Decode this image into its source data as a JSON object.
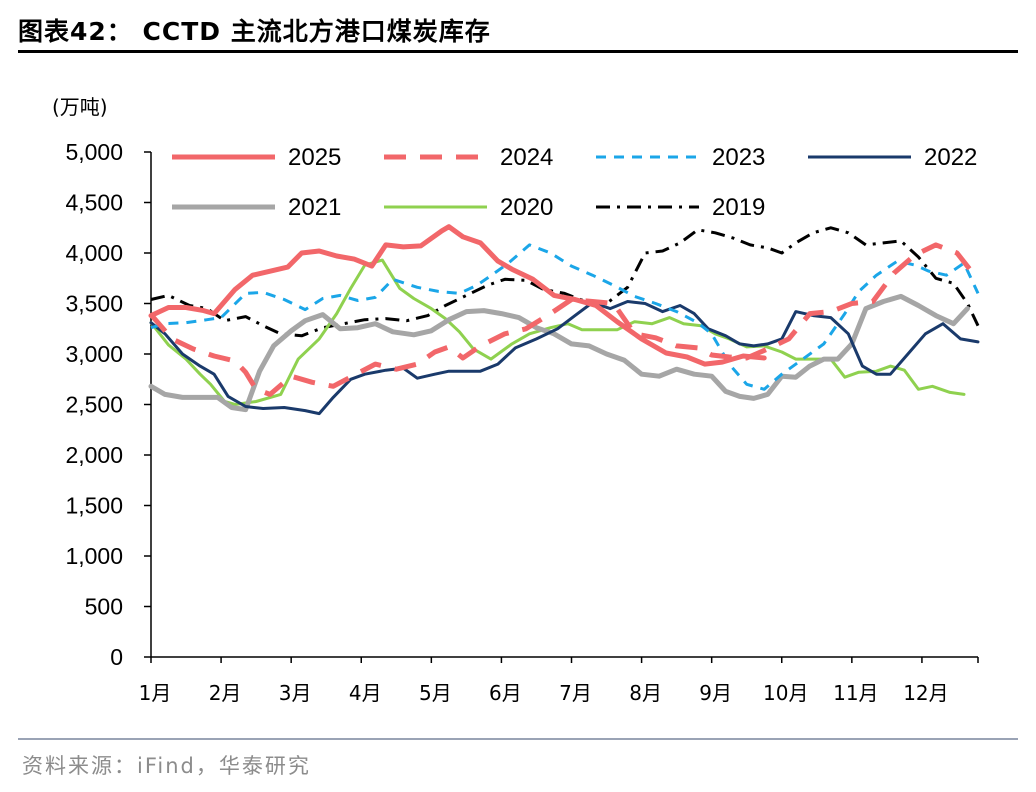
{
  "header": {
    "title": "图表42：  CCTD 主流北方港口煤炭库存",
    "source": "资料来源：iFind，华泰研究"
  },
  "chart_data": {
    "type": "line",
    "title": "CCTD 主流北方港口煤炭库存",
    "ylabel": "(万吨)",
    "xlabel": "",
    "ylim": [
      0,
      5000
    ],
    "yticks": [
      "5,000",
      "4,500",
      "4,000",
      "3,500",
      "3,000",
      "2,500",
      "2,000",
      "1,500",
      "1,000",
      "500",
      "0"
    ],
    "xticks": [
      "1月",
      "2月",
      "3月",
      "4月",
      "5月",
      "6月",
      "7月",
      "8月",
      "9月",
      "10月",
      "11月",
      "12月"
    ],
    "x_range_months": [
      1,
      12.8
    ],
    "legend_position": "top",
    "series": [
      {
        "name": "2025",
        "color": "#f2676a",
        "style": "solid",
        "width": 5,
        "x": [
          1,
          1.25,
          1.5,
          1.75,
          1.9,
          2.2,
          2.45,
          2.7,
          2.95,
          3.15,
          3.4,
          3.65,
          3.9,
          4.15,
          4.35,
          4.6,
          4.85,
          5.15,
          5.25,
          5.45,
          5.7,
          5.95,
          6.15,
          6.45,
          6.75,
          7.05,
          7.35,
          7.65,
          8.0,
          8.35,
          8.65,
          8.9,
          9.15,
          9.45,
          9.75
        ],
        "values": [
          3380,
          3460,
          3460,
          3430,
          3400,
          3640,
          3780,
          3820,
          3860,
          4000,
          4020,
          3970,
          3940,
          3870,
          4080,
          4060,
          4070,
          4220,
          4260,
          4160,
          4100,
          3920,
          3840,
          3740,
          3580,
          3540,
          3480,
          3320,
          3150,
          3010,
          2970,
          2900,
          2920,
          2980,
          2960
        ]
      },
      {
        "name": "2024",
        "color": "#f2676a",
        "style": "dashed",
        "width": 5,
        "x": [
          1,
          1.3,
          1.6,
          1.9,
          2.2,
          2.35,
          2.5,
          2.7,
          3.0,
          3.3,
          3.6,
          3.9,
          4.2,
          4.5,
          4.8,
          5.05,
          5.25,
          5.45,
          5.7,
          6.05,
          6.35,
          6.7,
          7.0,
          7.3,
          7.6,
          7.9,
          8.2,
          8.5,
          8.8,
          9.0,
          9.25,
          9.5,
          9.8,
          10.1,
          10.4,
          10.7,
          11.0,
          11.3,
          11.6,
          11.9,
          12.2,
          12.5,
          12.75
        ],
        "values": [
          3390,
          3150,
          3050,
          2980,
          2930,
          2820,
          2650,
          2600,
          2780,
          2720,
          2680,
          2790,
          2900,
          2850,
          2900,
          3020,
          3070,
          2960,
          3080,
          3200,
          3250,
          3400,
          3540,
          3520,
          3500,
          3200,
          3160,
          3080,
          3060,
          2990,
          2970,
          2960,
          3050,
          3150,
          3400,
          3420,
          3500,
          3520,
          3800,
          3980,
          4080,
          4000,
          3780
        ]
      },
      {
        "name": "2023",
        "color": "#1ba6e8",
        "style": "dashed",
        "width": 3,
        "x": [
          1,
          1.2,
          1.5,
          1.8,
          2.0,
          2.35,
          2.6,
          2.9,
          3.2,
          3.45,
          3.7,
          3.95,
          4.2,
          4.45,
          4.8,
          5.1,
          5.4,
          5.65,
          5.9,
          6.1,
          6.4,
          6.7,
          7.0,
          7.3,
          7.6,
          7.9,
          8.2,
          8.5,
          8.8,
          9.0,
          9.25,
          9.5,
          9.75,
          10.0,
          10.3,
          10.6,
          10.9,
          11.1,
          11.35,
          11.65,
          11.9,
          12.1,
          12.35,
          12.6,
          12.8
        ],
        "values": [
          3260,
          3300,
          3310,
          3340,
          3360,
          3600,
          3610,
          3540,
          3440,
          3550,
          3580,
          3530,
          3560,
          3740,
          3660,
          3620,
          3600,
          3680,
          3800,
          3900,
          4080,
          4000,
          3870,
          3780,
          3680,
          3570,
          3500,
          3420,
          3310,
          3200,
          2900,
          2700,
          2650,
          2800,
          2950,
          3100,
          3400,
          3620,
          3780,
          3920,
          3880,
          3820,
          3780,
          3900,
          3600
        ]
      },
      {
        "name": "2022",
        "color": "#1a3a6b",
        "style": "solid",
        "width": 3,
        "x": [
          1,
          1.2,
          1.45,
          1.7,
          1.9,
          2.1,
          2.35,
          2.6,
          2.9,
          3.2,
          3.4,
          3.6,
          3.85,
          4.05,
          4.35,
          4.6,
          4.8,
          5.05,
          5.25,
          5.45,
          5.7,
          5.95,
          6.2,
          6.5,
          6.8,
          7.05,
          7.3,
          7.55,
          7.8,
          8.05,
          8.3,
          8.55,
          8.75,
          8.95,
          9.2,
          9.4,
          9.6,
          9.8,
          10.0,
          10.2,
          10.45,
          10.7,
          10.95,
          11.15,
          11.35,
          11.55,
          11.8,
          12.05,
          12.3,
          12.55,
          12.8
        ],
        "values": [
          3310,
          3200,
          3000,
          2880,
          2800,
          2580,
          2480,
          2460,
          2470,
          2440,
          2410,
          2570,
          2750,
          2800,
          2840,
          2860,
          2760,
          2800,
          2830,
          2830,
          2830,
          2900,
          3060,
          3150,
          3250,
          3380,
          3510,
          3450,
          3520,
          3500,
          3420,
          3480,
          3400,
          3250,
          3180,
          3100,
          3080,
          3100,
          3150,
          3420,
          3380,
          3360,
          3200,
          2880,
          2800,
          2800,
          3000,
          3200,
          3300,
          3150,
          3120
        ]
      },
      {
        "name": "2021",
        "color": "#a6a6a6",
        "style": "solid",
        "width": 5,
        "x": [
          1,
          1.2,
          1.45,
          1.7,
          1.95,
          2.15,
          2.35,
          2.55,
          2.75,
          3.0,
          3.2,
          3.45,
          3.7,
          3.95,
          4.2,
          4.45,
          4.75,
          5.0,
          5.25,
          5.5,
          5.75,
          6.0,
          6.25,
          6.5,
          6.75,
          7.0,
          7.25,
          7.5,
          7.75,
          8.0,
          8.25,
          8.5,
          8.75,
          9.0,
          9.2,
          9.4,
          9.6,
          9.8,
          10.0,
          10.2,
          10.4,
          10.6,
          10.8,
          11.0,
          11.2,
          11.45,
          11.7,
          11.95,
          12.2,
          12.45,
          12.65
        ],
        "values": [
          2680,
          2600,
          2570,
          2570,
          2570,
          2470,
          2450,
          2830,
          3080,
          3230,
          3330,
          3390,
          3250,
          3260,
          3300,
          3220,
          3190,
          3230,
          3340,
          3420,
          3430,
          3400,
          3360,
          3260,
          3200,
          3100,
          3080,
          3000,
          2940,
          2800,
          2780,
          2850,
          2800,
          2780,
          2630,
          2580,
          2560,
          2600,
          2780,
          2770,
          2880,
          2950,
          2950,
          3100,
          3450,
          3520,
          3570,
          3480,
          3380,
          3300,
          3450
        ]
      },
      {
        "name": "2020",
        "color": "#8fd14f",
        "style": "solid",
        "width": 3,
        "x": [
          1,
          1.25,
          1.5,
          1.7,
          1.85,
          2.05,
          2.2,
          2.5,
          2.85,
          3.1,
          3.4,
          3.65,
          3.85,
          4.05,
          4.3,
          4.55,
          4.75,
          5.0,
          5.2,
          5.4,
          5.6,
          5.85,
          6.15,
          6.4,
          6.7,
          6.95,
          7.15,
          7.4,
          7.65,
          7.9,
          8.15,
          8.4,
          8.6,
          8.85,
          9.05,
          9.25,
          9.5,
          9.75,
          10.0,
          10.2,
          10.45,
          10.7,
          10.9,
          11.1,
          11.35,
          11.55,
          11.75,
          11.95,
          12.15,
          12.4,
          12.6
        ],
        "values": [
          3310,
          3090,
          2950,
          2800,
          2700,
          2530,
          2500,
          2530,
          2600,
          2950,
          3150,
          3400,
          3650,
          3880,
          3930,
          3650,
          3550,
          3450,
          3350,
          3220,
          3050,
          2950,
          3100,
          3200,
          3260,
          3300,
          3240,
          3240,
          3240,
          3320,
          3300,
          3360,
          3300,
          3280,
          3200,
          3150,
          3070,
          3080,
          3020,
          2950,
          2950,
          2950,
          2770,
          2820,
          2830,
          2880,
          2840,
          2650,
          2680,
          2620,
          2600
        ]
      },
      {
        "name": "2019",
        "color": "#000000",
        "style": "dashdot",
        "width": 3,
        "x": [
          1,
          1.25,
          1.55,
          1.8,
          2.05,
          2.35,
          2.6,
          2.85,
          3.15,
          3.45,
          3.75,
          4.05,
          4.35,
          4.65,
          4.95,
          5.2,
          5.5,
          5.8,
          6.05,
          6.35,
          6.6,
          6.9,
          7.2,
          7.5,
          7.8,
          8.05,
          8.3,
          8.55,
          8.8,
          9.05,
          9.3,
          9.55,
          9.8,
          10.0,
          10.2,
          10.45,
          10.7,
          10.95,
          11.2,
          11.45,
          11.7,
          11.95,
          12.2,
          12.45,
          12.65,
          12.8
        ],
        "values": [
          3540,
          3580,
          3480,
          3450,
          3330,
          3370,
          3280,
          3200,
          3180,
          3260,
          3300,
          3340,
          3350,
          3330,
          3380,
          3480,
          3580,
          3680,
          3740,
          3730,
          3640,
          3600,
          3520,
          3500,
          3660,
          4000,
          4020,
          4100,
          4230,
          4200,
          4150,
          4080,
          4050,
          4000,
          4100,
          4200,
          4250,
          4200,
          4080,
          4100,
          4120,
          3960,
          3750,
          3700,
          3500,
          3280
        ]
      }
    ]
  }
}
